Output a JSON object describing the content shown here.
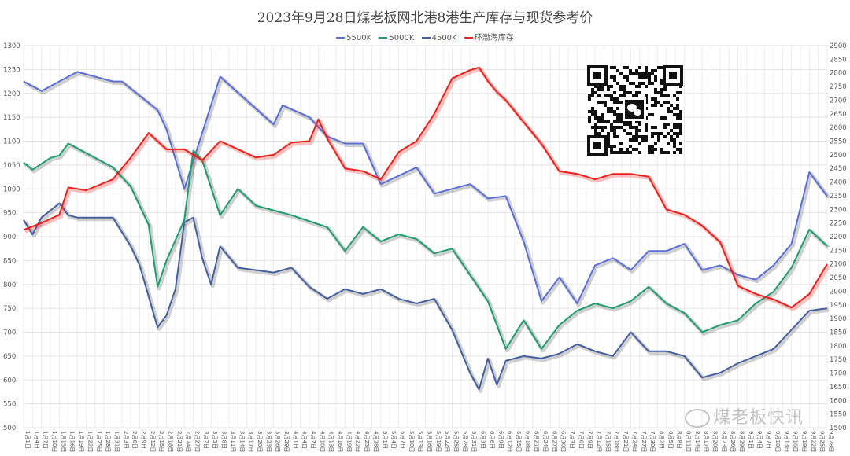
{
  "chart_data": {
    "type": "line",
    "title": "2023年9月28日煤老板网北港8港生产库存与现货参考价",
    "grid": true,
    "legend_position": "top-center",
    "y_left": {
      "ylim": [
        500,
        1300
      ],
      "ticks": [
        "500",
        "550",
        "600",
        "650",
        "700",
        "750",
        "800",
        "850",
        "900",
        "950",
        "1000",
        "1050",
        "1100",
        "1150",
        "1200",
        "1250",
        "1300"
      ]
    },
    "y_right": {
      "ylim": [
        1500,
        2900
      ],
      "ticks": [
        "1500",
        "1550",
        "1600",
        "1650",
        "1700",
        "1750",
        "1800",
        "1850",
        "1900",
        "1950",
        "2000",
        "2050",
        "2100",
        "2150",
        "2200",
        "2250",
        "2300",
        "2350",
        "2400",
        "2450",
        "2500",
        "2550",
        "2600",
        "2650",
        "2700",
        "2750",
        "2800",
        "2850",
        "2900"
      ]
    },
    "x_ticks": [
      "1月1日",
      "1月4日",
      "1月7日",
      "1月10日",
      "1月13日",
      "1月16日",
      "1月19日",
      "1月22日",
      "1月25日",
      "1月28日",
      "1月31日",
      "2月3日",
      "2月6日",
      "2月9日",
      "2月12日",
      "2月15日",
      "2月18日",
      "2月21日",
      "2月24日",
      "2月27日",
      "3月2日",
      "3月5日",
      "3月8日",
      "3月11日",
      "3月14日",
      "3月17日",
      "3月20日",
      "3月23日",
      "3月26日",
      "3月29日",
      "4月1日",
      "4月4日",
      "4月7日",
      "4月10日",
      "4月13日",
      "4月16日",
      "4月19日",
      "4月22日",
      "4月25日",
      "4月28日",
      "5月1日",
      "5月4日",
      "5月7日",
      "5月10日",
      "5月13日",
      "5月16日",
      "5月19日",
      "5月22日",
      "5月25日",
      "5月28日",
      "5月31日",
      "6月3日",
      "6月6日",
      "6月9日",
      "6月12日",
      "6月15日",
      "6月18日",
      "6月21日",
      "6月24日",
      "6月27日",
      "6月30日",
      "7月3日",
      "7月6日",
      "7月9日",
      "7月12日",
      "7月15日",
      "7月18日",
      "7月21日",
      "7月24日",
      "7月27日",
      "7月30日",
      "8月2日",
      "8月5日",
      "8月8日",
      "8月11日",
      "8月14日",
      "8月17日",
      "8月20日",
      "8月23日",
      "8月26日",
      "8月29日",
      "9月1日",
      "9月4日",
      "9月7日",
      "9月10日",
      "9月13日",
      "9月16日",
      "9月19日",
      "9月22日",
      "9月25日",
      "9月28日"
    ],
    "series": [
      {
        "name": "5500K",
        "axis": "left",
        "color": "#5b6fd8",
        "x_index": [
          0,
          2,
          6,
          10,
          11,
          15,
          16,
          18,
          22,
          28,
          29,
          32,
          34,
          36,
          38,
          40,
          44,
          46,
          50,
          52,
          54,
          56,
          58,
          60,
          62,
          64,
          66,
          68,
          70,
          72,
          74,
          76,
          78,
          80,
          82,
          84,
          86,
          88,
          90
        ],
        "values": [
          1225,
          1205,
          1245,
          1225,
          1225,
          1165,
          1125,
          1000,
          1235,
          1135,
          1175,
          1150,
          1110,
          1095,
          1095,
          1010,
          1045,
          990,
          1010,
          980,
          985,
          890,
          765,
          815,
          760,
          840,
          855,
          830,
          870,
          870,
          885,
          830,
          840,
          820,
          810,
          840,
          885,
          1035,
          985
        ]
      },
      {
        "name": "5000K",
        "axis": "left",
        "color": "#1e9e6e",
        "x_index": [
          0,
          1,
          3,
          4,
          5,
          6,
          10,
          12,
          14,
          15,
          16,
          18,
          19,
          20,
          22,
          24,
          26,
          30,
          34,
          36,
          38,
          40,
          42,
          44,
          46,
          48,
          52,
          54,
          56,
          58,
          60,
          62,
          64,
          66,
          68,
          70,
          72,
          74,
          76,
          78,
          80,
          82,
          84,
          86,
          88,
          90
        ],
        "values": [
          1055,
          1040,
          1065,
          1070,
          1095,
          1085,
          1045,
          1005,
          925,
          795,
          850,
          935,
          1080,
          1060,
          945,
          1000,
          965,
          945,
          920,
          870,
          920,
          890,
          905,
          895,
          865,
          875,
          765,
          665,
          725,
          665,
          715,
          745,
          760,
          750,
          765,
          795,
          760,
          740,
          700,
          715,
          725,
          760,
          785,
          835,
          915,
          880
        ]
      },
      {
        "name": "4500K",
        "axis": "left",
        "color": "#45609e",
        "x_index": [
          0,
          1,
          2,
          4,
          5,
          6,
          10,
          12,
          13,
          14,
          15,
          16,
          17,
          18,
          19,
          20,
          21,
          22,
          24,
          26,
          28,
          30,
          32,
          34,
          36,
          38,
          40,
          42,
          44,
          46,
          48,
          50,
          51,
          52,
          53,
          54,
          56,
          58,
          60,
          62,
          64,
          66,
          68,
          70,
          72,
          74,
          76,
          78,
          80,
          82,
          84,
          86,
          88,
          90
        ],
        "values": [
          935,
          905,
          940,
          970,
          945,
          940,
          940,
          880,
          840,
          775,
          710,
          735,
          790,
          930,
          940,
          855,
          800,
          880,
          835,
          830,
          825,
          835,
          795,
          770,
          790,
          780,
          790,
          770,
          760,
          770,
          705,
          615,
          580,
          645,
          590,
          640,
          650,
          645,
          655,
          675,
          660,
          650,
          700,
          660,
          660,
          650,
          605,
          615,
          635,
          650,
          665,
          705,
          745,
          750
        ]
      },
      {
        "name": "环渤海库存",
        "axis": "right",
        "color": "#e8211c",
        "x_index": [
          0,
          2,
          4,
          5,
          7,
          10,
          12,
          14,
          16,
          18,
          20,
          22,
          24,
          26,
          28,
          30,
          32,
          33,
          34,
          36,
          38,
          40,
          42,
          44,
          46,
          48,
          50,
          51,
          52,
          53,
          54,
          56,
          58,
          60,
          62,
          64,
          66,
          68,
          70,
          72,
          74,
          76,
          78,
          80,
          82,
          84,
          86,
          88,
          90
        ],
        "values": [
          2225,
          2250,
          2280,
          2380,
          2370,
          2410,
          2490,
          2580,
          2520,
          2520,
          2480,
          2550,
          2520,
          2490,
          2500,
          2545,
          2550,
          2630,
          2560,
          2450,
          2440,
          2410,
          2510,
          2550,
          2650,
          2780,
          2810,
          2820,
          2770,
          2730,
          2700,
          2620,
          2540,
          2440,
          2430,
          2410,
          2430,
          2430,
          2420,
          2300,
          2280,
          2240,
          2180,
          2020,
          1990,
          1970,
          1940,
          1990,
          2100
        ]
      }
    ]
  },
  "legend": [
    {
      "label": "5500K",
      "color": "#5b6fd8"
    },
    {
      "label": "5000K",
      "color": "#1e9e6e"
    },
    {
      "label": "4500K",
      "color": "#45609e"
    },
    {
      "label": "环渤海库存",
      "color": "#e8211c"
    }
  ],
  "watermark": "煤老板快讯",
  "qr_icon": "wechat-qr-code-icon"
}
